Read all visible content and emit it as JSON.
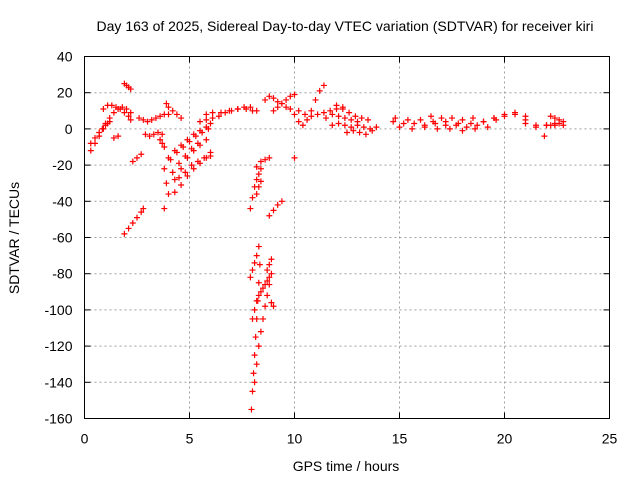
{
  "chart_data": {
    "type": "scatter",
    "title": "Day 163 of 2025, Sidereal Day-to-day VTEC variation (SDTVAR) for receiver kiri",
    "xlabel": "GPS time / hours",
    "ylabel": "SDTVAR / TECUs",
    "xlim": [
      0,
      25
    ],
    "ylim": [
      -160,
      40
    ],
    "xticks": [
      "0",
      "5",
      "10",
      "15",
      "20",
      "25"
    ],
    "yticks": [
      "-160",
      "-140",
      "-120",
      "-100",
      "-80",
      "-60",
      "-40",
      "-20",
      "0",
      "20",
      "40"
    ],
    "grid": true,
    "marker": "+",
    "color": "#ff0000",
    "series": [
      {
        "x": [
          0.3,
          0.5,
          0.7,
          0.9,
          1.1,
          1.2
        ],
        "y": [
          -12,
          -8,
          -4,
          0,
          3,
          4
        ]
      },
      {
        "x": [
          0.3,
          0.5,
          0.7,
          0.85,
          1.0
        ],
        "y": [
          -8,
          -5,
          -2,
          0,
          2
        ]
      },
      {
        "x": [
          0.9,
          1.1,
          1.3,
          1.5,
          1.7,
          1.9,
          2.1,
          2.2
        ],
        "y": [
          11,
          13,
          13,
          12,
          11,
          9,
          7,
          5
        ]
      },
      {
        "x": [
          1.0,
          1.2,
          1.4,
          1.6,
          1.8,
          2.0,
          2.2
        ],
        "y": [
          3,
          6,
          9,
          11,
          12,
          11,
          9
        ]
      },
      {
        "x": [
          1.4,
          1.6
        ],
        "y": [
          -5,
          -4
        ]
      },
      {
        "x": [
          1.9,
          2.0,
          2.1,
          2.2
        ],
        "y": [
          25,
          24,
          23,
          22
        ]
      },
      {
        "x": [
          1.9,
          2.1,
          2.3,
          2.5,
          2.7,
          2.8
        ],
        "y": [
          -58,
          -55,
          -52,
          -49,
          -46,
          -44
        ]
      },
      {
        "x": [
          2.3,
          2.5,
          2.7
        ],
        "y": [
          -18,
          -16,
          -14
        ]
      },
      {
        "x": [
          2.6,
          2.8,
          3.0,
          3.2,
          3.4,
          3.6,
          3.8,
          4.0
        ],
        "y": [
          6,
          5,
          4,
          5,
          6,
          7,
          8,
          8
        ]
      },
      {
        "x": [
          2.9,
          3.1,
          3.3,
          3.5,
          3.7
        ],
        "y": [
          -3,
          -4,
          -3,
          -2,
          -3
        ]
      },
      {
        "x": [
          3.6,
          3.7,
          3.8
        ],
        "y": [
          -6,
          -8,
          -10
        ]
      },
      {
        "x": [
          3.9,
          4.0,
          4.2,
          4.4,
          4.6
        ],
        "y": [
          14,
          12,
          10,
          8,
          6
        ]
      },
      {
        "x": [
          3.8,
          4.0,
          4.3,
          4.6,
          4.9,
          5.2,
          5.5
        ],
        "y": [
          -44,
          -36,
          -28,
          -22,
          -16,
          -12,
          -9
        ]
      },
      {
        "x": [
          3.9,
          4.2,
          4.5,
          4.8,
          5.1,
          5.4,
          5.8
        ],
        "y": [
          -30,
          -24,
          -19,
          -15,
          -11,
          -8,
          -6
        ]
      },
      {
        "x": [
          3.8,
          4.1,
          4.4,
          4.7,
          5.0,
          5.3,
          5.6,
          5.9
        ],
        "y": [
          -22,
          -17,
          -13,
          -10,
          -7,
          -4,
          -2,
          0
        ]
      },
      {
        "x": [
          4.0,
          4.3,
          4.6,
          4.9,
          5.2,
          5.5,
          5.8,
          6.0
        ],
        "y": [
          -16,
          -12,
          -9,
          -6,
          -3,
          -1,
          1,
          3
        ]
      },
      {
        "x": [
          4.5,
          4.8,
          5.1,
          5.4,
          5.7,
          6.0
        ],
        "y": [
          -27,
          -24,
          -20,
          -18,
          -16,
          -15
        ]
      },
      {
        "x": [
          4.3,
          4.6,
          4.9,
          5.2,
          5.5,
          5.8,
          6.0
        ],
        "y": [
          -35,
          -31,
          -26,
          -22,
          -19,
          -16,
          -13
        ]
      },
      {
        "x": [
          5.5,
          5.8,
          6.1,
          6.4,
          6.7,
          7.0,
          7.3,
          7.6,
          7.9,
          8.2
        ],
        "y": [
          4,
          5,
          6,
          7,
          9,
          10,
          11,
          12,
          12,
          10
        ]
      },
      {
        "x": [
          5.8,
          6.1,
          6.5,
          6.9,
          7.3,
          7.7,
          8.0
        ],
        "y": [
          8,
          9,
          9,
          10,
          11,
          11,
          10
        ]
      },
      {
        "x": [
          7.9,
          8.0,
          8.1,
          8.2,
          8.3,
          8.4
        ],
        "y": [
          -44,
          -38,
          -32,
          -28,
          -25,
          -22
        ]
      },
      {
        "x": [
          8.2,
          8.4,
          8.6,
          8.8
        ],
        "y": [
          -21,
          -18,
          -17,
          -16
        ]
      },
      {
        "x": [
          8.2,
          8.3,
          8.4
        ],
        "y": [
          -36,
          -32,
          -29
        ]
      },
      {
        "x": [
          8.8,
          9.0,
          9.2,
          9.4
        ],
        "y": [
          -48,
          -45,
          -42,
          -40
        ]
      },
      {
        "x": [
          7.95,
          8.0,
          8.05,
          8.1,
          8.15,
          8.2,
          8.25,
          8.3,
          8.35
        ],
        "y": [
          -155,
          -145,
          -135,
          -125,
          -115,
          -105,
          -95,
          -85,
          -75
        ]
      },
      {
        "x": [
          8.0,
          8.1,
          8.2,
          8.3,
          8.4,
          8.5,
          8.6,
          8.7,
          8.8
        ],
        "y": [
          -105,
          -100,
          -95,
          -92,
          -90,
          -88,
          -86,
          -84,
          -82
        ]
      },
      {
        "x": [
          8.1,
          8.2,
          8.3,
          8.4,
          8.5,
          8.6,
          8.7,
          8.8,
          8.9
        ],
        "y": [
          -140,
          -130,
          -120,
          -112,
          -105,
          -98,
          -92,
          -86,
          -80
        ]
      },
      {
        "x": [
          7.9,
          8.0,
          8.1,
          8.2,
          8.3
        ],
        "y": [
          -82,
          -78,
          -74,
          -70,
          -65
        ]
      },
      {
        "x": [
          8.7,
          8.8,
          8.9
        ],
        "y": [
          -78,
          -75,
          -72
        ]
      },
      {
        "x": [
          8.9,
          9.0
        ],
        "y": [
          -96,
          -98
        ]
      },
      {
        "x": [
          8.6,
          8.8,
          9.0,
          9.2,
          9.4,
          9.6,
          9.8
        ],
        "y": [
          16,
          18,
          17,
          15,
          14,
          12,
          11
        ]
      },
      {
        "x": [
          9.0,
          9.2,
          9.4,
          9.6,
          9.8,
          10.0
        ],
        "y": [
          10,
          12,
          14,
          16,
          18,
          19
        ]
      },
      {
        "x": [
          10.0
        ],
        "y": [
          -16
        ]
      },
      {
        "x": [
          10.0,
          10.2,
          10.4,
          10.6,
          10.8,
          11.0,
          11.2,
          11.4
        ],
        "y": [
          8,
          4,
          2,
          5,
          10,
          16,
          21,
          24
        ]
      },
      {
        "x": [
          10.2,
          10.5,
          10.8,
          11.1,
          11.4,
          11.7,
          12.0,
          12.3
        ],
        "y": [
          10,
          8,
          7,
          8,
          9,
          10,
          11,
          12
        ]
      },
      {
        "x": [
          11.5,
          11.8,
          12.1,
          12.4,
          12.7,
          13.0
        ],
        "y": [
          6,
          8,
          7,
          6,
          5,
          4
        ]
      },
      {
        "x": [
          11.8,
          12.1,
          12.4,
          12.7,
          13.0,
          13.3,
          13.6,
          13.9
        ],
        "y": [
          2,
          3,
          2,
          1,
          2,
          1,
          0,
          1
        ]
      },
      {
        "x": [
          12.5,
          12.8,
          13.1,
          13.4,
          13.7
        ],
        "y": [
          -2,
          -1,
          -2,
          -3,
          -1
        ]
      },
      {
        "x": [
          12.0,
          12.3,
          12.6,
          12.9,
          13.2,
          13.5
        ],
        "y": [
          13,
          11,
          9,
          7,
          6,
          5
        ]
      },
      {
        "x": [
          14.7,
          15.2,
          15.7,
          16.2,
          16.7,
          17.2,
          17.7,
          18.2,
          18.7
        ],
        "y": [
          4,
          3,
          3,
          2,
          3,
          2,
          2,
          1,
          2
        ]
      },
      {
        "x": [
          14.8,
          15.4,
          16.0,
          16.6,
          17.2,
          17.8,
          18.4,
          19.0,
          19.6
        ],
        "y": [
          6,
          5,
          5,
          4,
          4,
          3,
          3,
          4,
          5
        ]
      },
      {
        "x": [
          15.0,
          15.6,
          16.2,
          16.8,
          17.4,
          18.0,
          18.6,
          19.2
        ],
        "y": [
          1,
          0,
          1,
          0,
          0,
          -1,
          0,
          1
        ]
      },
      {
        "x": [
          16.5,
          17.0,
          17.5,
          18.0,
          18.5
        ],
        "y": [
          7,
          6,
          6,
          5,
          6
        ]
      },
      {
        "x": [
          19.0,
          19.5,
          20.0,
          20.5,
          21.0,
          21.5,
          22.0
        ],
        "y": [
          4,
          6,
          7,
          8,
          5,
          2,
          2
        ]
      },
      {
        "x": [
          19.5,
          20.0,
          20.5,
          21.0
        ],
        "y": [
          6,
          8,
          9,
          7
        ]
      },
      {
        "x": [
          21.0,
          21.5,
          22.0,
          22.4
        ],
        "y": [
          3,
          1,
          2,
          3
        ]
      },
      {
        "x": [
          21.9
        ],
        "y": [
          -4
        ]
      },
      {
        "x": [
          22.2,
          22.4,
          22.6,
          22.8
        ],
        "y": [
          7,
          6,
          5,
          4
        ]
      },
      {
        "x": [
          22.2,
          22.4,
          22.6,
          22.8
        ],
        "y": [
          2,
          2,
          3,
          2
        ]
      }
    ]
  }
}
